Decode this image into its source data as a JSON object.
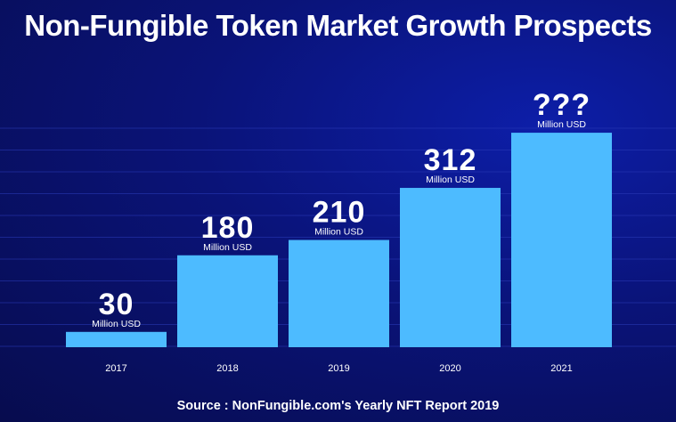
{
  "title": "Non-Fungible Token Market Growth Prospects",
  "source": "Source : NonFungible.com's Yearly NFT Report 2019",
  "colors": {
    "bar": "#4dbbff",
    "background": "#0a1378",
    "gridline": "#2a3ab8",
    "text": "#ffffff"
  },
  "chart_data": {
    "type": "bar",
    "title": "Non-Fungible Token Market Growth Prospects",
    "categories": [
      "2017",
      "2018",
      "2019",
      "2020",
      "2021"
    ],
    "values": [
      30,
      180,
      210,
      312,
      420
    ],
    "value_labels": [
      "30",
      "180",
      "210",
      "312",
      "???"
    ],
    "unit_label": "Million USD",
    "xlabel": "",
    "ylabel": "",
    "ylim": [
      0,
      462
    ],
    "grid": true,
    "legend": "none"
  }
}
